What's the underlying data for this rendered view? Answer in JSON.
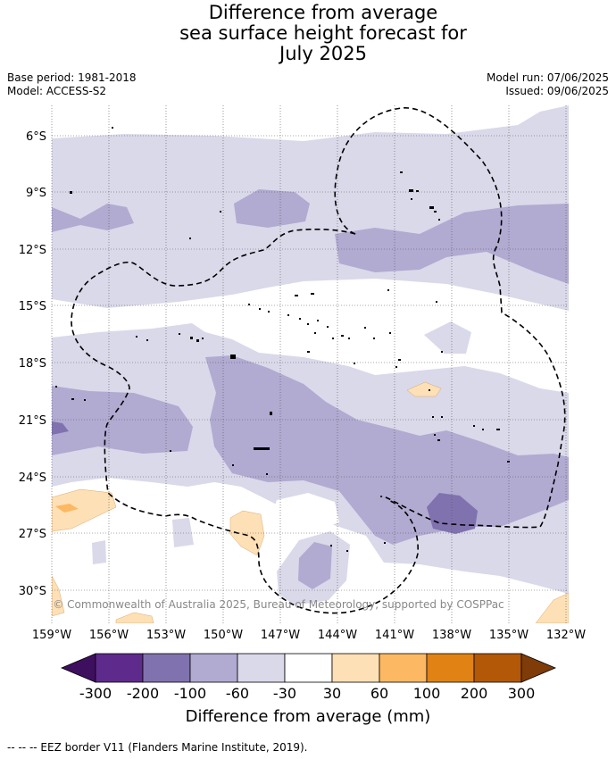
{
  "title": {
    "line1": "Difference from average",
    "line2": "sea surface height forecast for",
    "line3": "July 2025"
  },
  "meta": {
    "base_period": "Base period: 1981-2018",
    "model": "Model: ACCESS-S2",
    "model_run": "Model run: 07/06/2025",
    "issued": "Issued: 09/06/2025"
  },
  "map": {
    "lat_ticks": [
      "6°S",
      "9°S",
      "12°S",
      "15°S",
      "18°S",
      "21°S",
      "24°S",
      "27°S",
      "30°S"
    ],
    "lon_ticks": [
      "159°W",
      "156°W",
      "153°W",
      "150°W",
      "147°W",
      "144°W",
      "141°W",
      "138°W",
      "135°W",
      "132°W"
    ],
    "copyright": "© Commonwealth of Australia 2025, Bureau of Meteorology, supported by COSPPac",
    "colors": {
      "land": "#000000",
      "grid": "#555555",
      "copyright_text": "#888888"
    }
  },
  "colorbar": {
    "tick_labels": [
      "-300",
      "-200",
      "-100",
      "-60",
      "-30",
      "30",
      "60",
      "100",
      "200",
      "300"
    ],
    "colors": [
      "#3f0f5f",
      "#5e2a8c",
      "#8072ae",
      "#b1aad1",
      "#d9d9ea",
      "#ffffff",
      "#fee0b6",
      "#fdb863",
      "#e08214",
      "#b35806",
      "#7f3b08"
    ],
    "label": "Difference from average (mm)"
  },
  "footer": {
    "legend": "--  --  -- EEZ border V11 (Flanders Marine Institute, 2019)."
  }
}
